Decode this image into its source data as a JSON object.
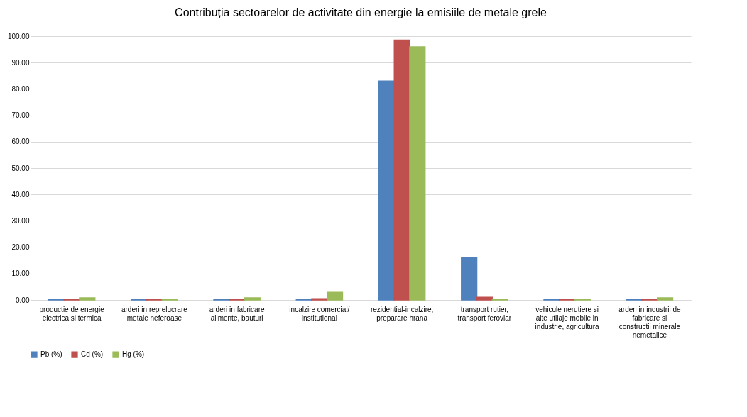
{
  "chart_data": {
    "type": "bar",
    "title": "Contribuția sectoarelor de activitate din energie la emisiile de metale grele",
    "categories": [
      "productie de energie electrica si termica",
      "arderi in reprelucrare metale neferoase",
      "arderi in fabricare alimente, bauturi",
      "incalzire comercial/ institutional",
      "rezidential-incalzire, preparare hrana",
      "transport rutier, transport feroviar",
      "vehicule nerutiere si alte utilaje mobile in industrie, agricultura",
      "arderi in industrii de fabricare si constructii minerale nemetalice"
    ],
    "series": [
      {
        "name": "Pb (%)",
        "color": "#4f81bd",
        "values": [
          0.1,
          0.1,
          0.1,
          0.2,
          83.0,
          16.1,
          0.1,
          0.1
        ]
      },
      {
        "name": "Cd (%)",
        "color": "#c0504d",
        "values": [
          0.1,
          0.1,
          0.1,
          0.5,
          98.5,
          1.0,
          0.1,
          0.1
        ]
      },
      {
        "name": "Hg (%)",
        "color": "#9bbb59",
        "values": [
          0.8,
          0.1,
          0.8,
          2.9,
          96.0,
          0.1,
          0.1,
          0.8
        ]
      }
    ],
    "ylim": [
      0,
      100
    ],
    "yticks": [
      {
        "value": 0,
        "label": "0.00"
      },
      {
        "value": 10,
        "label": "10.00"
      },
      {
        "value": 20,
        "label": "20.00"
      },
      {
        "value": 30,
        "label": "30.00"
      },
      {
        "value": 40,
        "label": "40.00"
      },
      {
        "value": 50,
        "label": "50.00"
      },
      {
        "value": 60,
        "label": "60.00"
      },
      {
        "value": 70,
        "label": "70.00"
      },
      {
        "value": 80,
        "label": "80.00"
      },
      {
        "value": 90,
        "label": "90.00"
      },
      {
        "value": 100,
        "label": "100.00"
      }
    ],
    "grid": "y",
    "legend": "bottom"
  }
}
